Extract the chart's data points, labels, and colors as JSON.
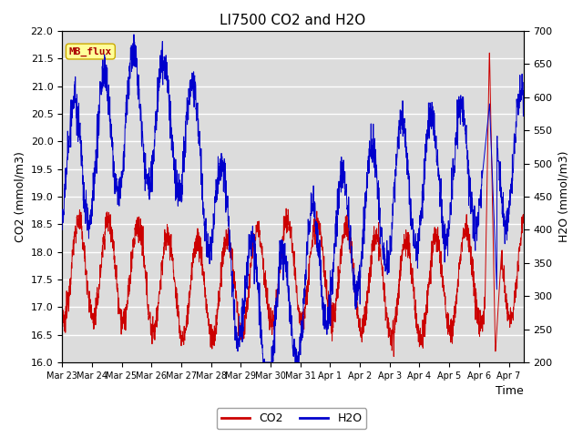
{
  "title": "LI7500 CO2 and H2O",
  "xlabel": "Time",
  "ylabel_left": "CO2 (mmol/m3)",
  "ylabel_right": "H2O (mmol/m3)",
  "ylim_left": [
    16.0,
    22.0
  ],
  "ylim_right": [
    200,
    700
  ],
  "yticks_left": [
    16.0,
    16.5,
    17.0,
    17.5,
    18.0,
    18.5,
    19.0,
    19.5,
    20.0,
    20.5,
    21.0,
    21.5,
    22.0
  ],
  "yticks_right": [
    200,
    250,
    300,
    350,
    400,
    450,
    500,
    550,
    600,
    650,
    700
  ],
  "xtick_labels": [
    "Mar 23",
    "Mar 24",
    "Mar 25",
    "Mar 26",
    "Mar 27",
    "Mar 28",
    "Mar 29",
    "Mar 30",
    "Mar 31",
    "Apr 1",
    "Apr 2",
    "Apr 3",
    "Apr 4",
    "Apr 5",
    "Apr 6",
    "Apr 7"
  ],
  "co2_color": "#cc0000",
  "h2o_color": "#0000cc",
  "background_color": "#dcdcdc",
  "figure_background": "#ffffff",
  "legend_label_co2": "CO2",
  "legend_label_h2o": "H2O",
  "annotation_text": "MB_flux",
  "annotation_bg": "#ffff99",
  "annotation_border": "#ccaa00",
  "annotation_color": "#aa0000",
  "grid_color": "#ffffff",
  "title_fontsize": 11,
  "axis_fontsize": 9,
  "tick_fontsize": 8
}
